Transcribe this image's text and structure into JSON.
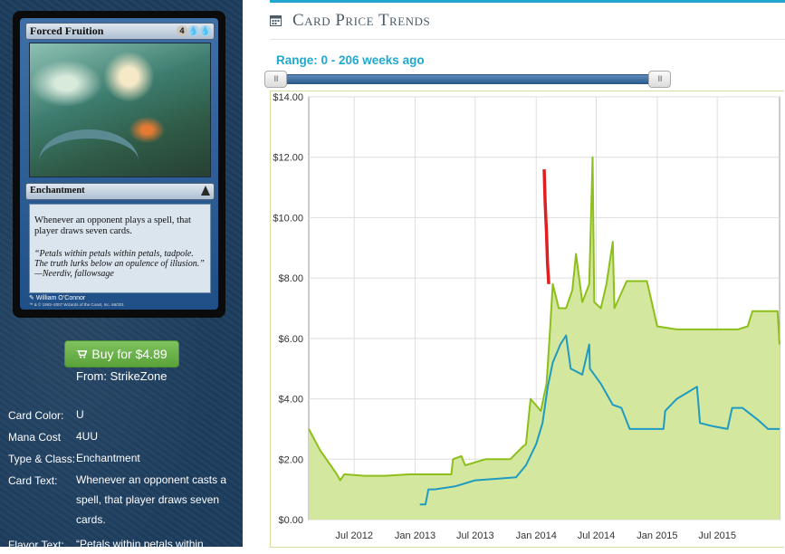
{
  "card": {
    "name": "Forced Fruition",
    "mana_symbols": [
      "4",
      "U",
      "U"
    ],
    "type_line": "Enchantment",
    "rules_text": "Whenever an opponent plays a spell, that player draws seven cards.",
    "flavor_text": "“Petals within petals within petals, tadpole. The truth lurks below an opulence of illusion.” —Neerdiv, fallowsage",
    "artist": "William O’Connor",
    "copyright": "™ & © 1993–2007 Wizards of the Coast, Inc. 66/301"
  },
  "buy": {
    "label": "Buy for $4.89",
    "from_prefix": "From:",
    "from_store": "StrikeZone"
  },
  "details": [
    {
      "label": "Card Color:",
      "value": "U"
    },
    {
      "label": "Mana Cost",
      "value": "4UU"
    },
    {
      "label": "Type & Class:",
      "value": "Enchantment"
    },
    {
      "label": "Card Text:",
      "value": "Whenever an opponent casts a spell, that player draws seven cards."
    },
    {
      "label": "Flavor Text:",
      "value": "“Petals within petals within"
    }
  ],
  "section_title": "Card Price Trends",
  "range_label": "Range: 0 - 206 weeks ago",
  "slider": {
    "handle_label": "III",
    "min_weeks": 0,
    "max_weeks": 206
  },
  "colors": {
    "accent": "#22a7cf",
    "green_line": "#8dbf1a",
    "green_fill": "#d4e79e",
    "blue_line": "#1f9bc2",
    "red_line": "#e02020",
    "sidebar": "#1d3d5e",
    "buy_button": "#6cb34a"
  },
  "icons": [
    "calendar-icon",
    "cart-icon",
    "slider-handle-grip-icon"
  ],
  "chart_data": {
    "type": "line",
    "y_ticks": [
      "$0.00",
      "$2.00",
      "$4.00",
      "$6.00",
      "$8.00",
      "$10.00",
      "$12.00",
      "$14.00"
    ],
    "x_ticks": [
      "Jul 2012",
      "Jan 2013",
      "Jul 2013",
      "Jan 2014",
      "Jul 2014",
      "Jan 2015",
      "Jul 2015"
    ],
    "ylim": [
      0,
      14
    ],
    "grid": true,
    "series": [
      {
        "color": "green",
        "filled": true,
        "points": [
          [
            "2012-02-15",
            3.0
          ],
          [
            "2012-03-20",
            2.3
          ],
          [
            "2012-05-10",
            1.5
          ],
          [
            "2012-05-20",
            1.3
          ],
          [
            "2012-06-01",
            1.5
          ],
          [
            "2012-08-01",
            1.45
          ],
          [
            "2012-10-01",
            1.45
          ],
          [
            "2012-12-15",
            1.5
          ],
          [
            "2013-03-01",
            1.5
          ],
          [
            "2013-04-20",
            1.5
          ],
          [
            "2013-04-25",
            2.0
          ],
          [
            "2013-05-20",
            2.1
          ],
          [
            "2013-06-01",
            1.8
          ],
          [
            "2013-08-01",
            2.0
          ],
          [
            "2013-10-15",
            2.0
          ],
          [
            "2013-11-20",
            2.4
          ],
          [
            "2013-12-01",
            2.5
          ],
          [
            "2013-12-15",
            4.0
          ],
          [
            "2014-01-15",
            3.6
          ],
          [
            "2014-02-01",
            4.5
          ],
          [
            "2014-02-10",
            6.0
          ],
          [
            "2014-02-20",
            7.8
          ],
          [
            "2014-03-10",
            7.0
          ],
          [
            "2014-04-01",
            7.0
          ],
          [
            "2014-04-20",
            7.6
          ],
          [
            "2014-05-01",
            8.8
          ],
          [
            "2014-05-20",
            7.2
          ],
          [
            "2014-06-10",
            7.8
          ],
          [
            "2014-06-20",
            12.0
          ],
          [
            "2014-06-25",
            7.2
          ],
          [
            "2014-07-15",
            7.0
          ],
          [
            "2014-08-01",
            7.8
          ],
          [
            "2014-08-20",
            9.2
          ],
          [
            "2014-08-25",
            7.0
          ],
          [
            "2014-10-01",
            7.9
          ],
          [
            "2014-11-01",
            7.9
          ],
          [
            "2014-12-01",
            7.9
          ],
          [
            "2015-01-01",
            6.4
          ],
          [
            "2015-03-01",
            6.3
          ],
          [
            "2015-05-01",
            6.3
          ],
          [
            "2015-07-01",
            6.3
          ],
          [
            "2015-09-01",
            6.3
          ],
          [
            "2015-10-01",
            6.4
          ],
          [
            "2015-10-15",
            6.9
          ],
          [
            "2015-12-30",
            6.9
          ],
          [
            "2016-01-05",
            5.8
          ]
        ]
      },
      {
        "color": "blue",
        "filled": false,
        "points": [
          [
            "2013-01-15",
            0.5
          ],
          [
            "2013-02-01",
            0.5
          ],
          [
            "2013-02-10",
            1.0
          ],
          [
            "2013-03-01",
            1.0
          ],
          [
            "2013-05-01",
            1.1
          ],
          [
            "2013-07-01",
            1.3
          ],
          [
            "2013-09-01",
            1.35
          ],
          [
            "2013-11-01",
            1.4
          ],
          [
            "2013-12-01",
            1.8
          ],
          [
            "2014-01-01",
            2.5
          ],
          [
            "2014-01-20",
            3.2
          ],
          [
            "2014-02-05",
            4.4
          ],
          [
            "2014-02-20",
            5.2
          ],
          [
            "2014-03-15",
            5.8
          ],
          [
            "2014-04-01",
            6.1
          ],
          [
            "2014-04-15",
            5.0
          ],
          [
            "2014-05-20",
            4.8
          ],
          [
            "2014-06-10",
            5.8
          ],
          [
            "2014-06-12",
            5.0
          ],
          [
            "2014-07-15",
            4.5
          ],
          [
            "2014-08-20",
            3.8
          ],
          [
            "2014-09-15",
            3.7
          ],
          [
            "2014-10-10",
            3.0
          ],
          [
            "2015-01-01",
            3.0
          ],
          [
            "2015-01-20",
            3.0
          ],
          [
            "2015-01-25",
            3.6
          ],
          [
            "2015-03-01",
            4.0
          ],
          [
            "2015-04-01",
            4.2
          ],
          [
            "2015-05-01",
            4.4
          ],
          [
            "2015-05-10",
            3.2
          ],
          [
            "2015-06-15",
            3.1
          ],
          [
            "2015-08-01",
            3.0
          ],
          [
            "2015-08-15",
            3.7
          ],
          [
            "2015-09-15",
            3.7
          ],
          [
            "2015-11-01",
            3.3
          ],
          [
            "2015-12-01",
            3.0
          ],
          [
            "2016-01-05",
            3.0
          ]
        ]
      },
      {
        "color": "red",
        "filled": false,
        "points": [
          [
            "2014-01-25",
            11.6
          ],
          [
            "2014-01-28",
            10.5
          ],
          [
            "2014-02-01",
            9.5
          ],
          [
            "2014-02-04",
            8.5
          ],
          [
            "2014-02-08",
            7.8
          ]
        ]
      }
    ]
  }
}
